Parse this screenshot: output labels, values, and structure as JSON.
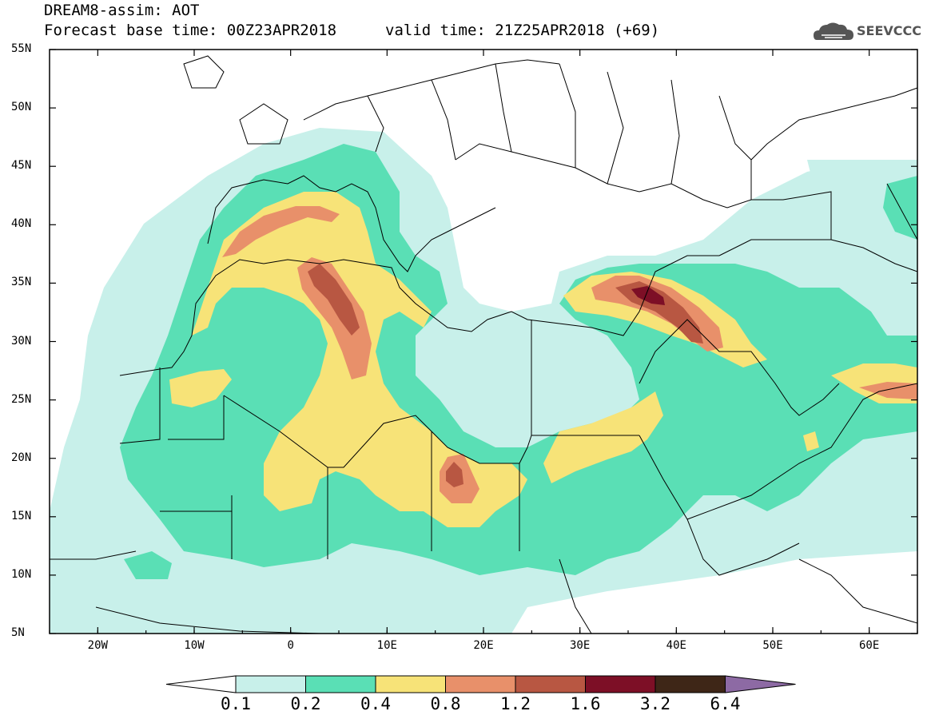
{
  "header": {
    "line1": "DREAM8-assim: AOT",
    "line2": "Forecast base time: 00Z23APR2018",
    "valid": "valid time: 21Z25APR2018 (+69)",
    "logo_text": "SEEVCCC",
    "logo_icon": "cloud-icon"
  },
  "map": {
    "lat_labels": [
      "55N",
      "50N",
      "45N",
      "40N",
      "35N",
      "30N",
      "25N",
      "20N",
      "15N",
      "10N",
      "5N"
    ],
    "lon_labels": [
      "20W",
      "10W",
      "0",
      "10E",
      "20E",
      "30E",
      "40E",
      "50E",
      "60E"
    ],
    "lon_range": [
      -25,
      65
    ],
    "lat_range": [
      5,
      55
    ]
  },
  "legend": {
    "labels": [
      "0.1",
      "0.2",
      "0.4",
      "0.8",
      "1.2",
      "1.6",
      "3.2",
      "6.4"
    ],
    "colors": [
      "#ffffff",
      "#c8f0ea",
      "#5adfb5",
      "#f7e378",
      "#e8906a",
      "#b85742",
      "#7d0f26",
      "#3e2617",
      "#8d6aa4"
    ]
  }
}
